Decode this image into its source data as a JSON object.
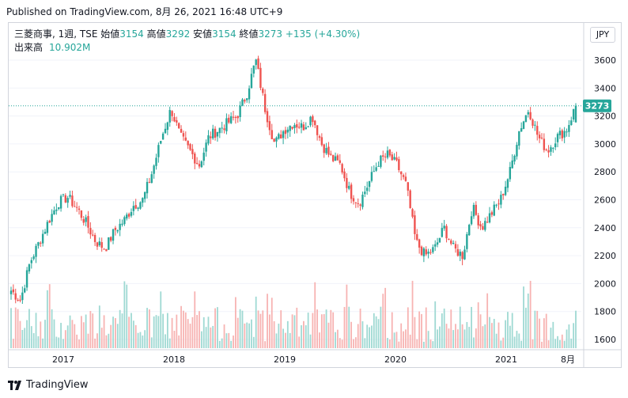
{
  "publish_line": "Published on TradingView.com, 8月 26, 2021 16:48 UTC+9",
  "legend": {
    "symbol": "三菱商事, 1週, TSE",
    "open_label": "始値",
    "open": "3154",
    "high_label": "高値",
    "high": "3292",
    "low_label": "安値",
    "low": "3154",
    "close_label": "終値",
    "close": "3273",
    "change": "+135 (+4.30%)",
    "volume_label": "出来高",
    "volume": "10.902M"
  },
  "currency": "JPY",
  "brand": "TradingView",
  "colors": {
    "up": "#26a69a",
    "down": "#ef5350",
    "up_vol": "#9fd9d3",
    "down_vol": "#f7b3b2",
    "last_price": "#26a69a",
    "grid": "#f0f3fa"
  },
  "chart_data": {
    "type": "candlestick",
    "price_axis_ticks": [
      1600,
      1800,
      2000,
      2200,
      2400,
      2600,
      2800,
      3000,
      3200,
      3400,
      3600
    ],
    "time_axis_labels": [
      "2017",
      "2018",
      "2019",
      "2020",
      "2021",
      "8月"
    ],
    "ylim": [
      1500,
      3720
    ],
    "last_price": 3273,
    "last_bar": {
      "open": 3154,
      "high": 3292,
      "low": 3154,
      "close": 3273,
      "volume": "10.902M"
    },
    "weekly_close_path": [
      {
        "x": "2016-07",
        "v": 1950
      },
      {
        "x": "2016-09",
        "v": 1880
      },
      {
        "x": "2016-10",
        "v": 2150
      },
      {
        "x": "2016-11",
        "v": 2300
      },
      {
        "x": "2016-12",
        "v": 2450
      },
      {
        "x": "2017-01",
        "v": 2580
      },
      {
        "x": "2017-02",
        "v": 2620
      },
      {
        "x": "2017-03",
        "v": 2540
      },
      {
        "x": "2017-04",
        "v": 2430
      },
      {
        "x": "2017-05",
        "v": 2300
      },
      {
        "x": "2017-06",
        "v": 2250
      },
      {
        "x": "2017-07",
        "v": 2380
      },
      {
        "x": "2017-08",
        "v": 2450
      },
      {
        "x": "2017-09",
        "v": 2560
      },
      {
        "x": "2017-10",
        "v": 2600
      },
      {
        "x": "2017-11",
        "v": 2800
      },
      {
        "x": "2017-12",
        "v": 3050
      },
      {
        "x": "2018-01",
        "v": 3250
      },
      {
        "x": "2018-02",
        "v": 3050
      },
      {
        "x": "2018-03",
        "v": 2950
      },
      {
        "x": "2018-04",
        "v": 2850
      },
      {
        "x": "2018-05",
        "v": 3050
      },
      {
        "x": "2018-06",
        "v": 3100
      },
      {
        "x": "2018-07",
        "v": 3150
      },
      {
        "x": "2018-08",
        "v": 3200
      },
      {
        "x": "2018-09",
        "v": 3350
      },
      {
        "x": "2018-10",
        "v": 3600
      },
      {
        "x": "2018-11",
        "v": 3250
      },
      {
        "x": "2018-12",
        "v": 3000
      },
      {
        "x": "2019-01",
        "v": 3100
      },
      {
        "x": "2019-02",
        "v": 3150
      },
      {
        "x": "2019-03",
        "v": 3120
      },
      {
        "x": "2019-04",
        "v": 3200
      },
      {
        "x": "2019-05",
        "v": 3000
      },
      {
        "x": "2019-06",
        "v": 2900
      },
      {
        "x": "2019-07",
        "v": 2850
      },
      {
        "x": "2019-08",
        "v": 2650
      },
      {
        "x": "2019-09",
        "v": 2580
      },
      {
        "x": "2019-10",
        "v": 2720
      },
      {
        "x": "2019-11",
        "v": 2870
      },
      {
        "x": "2019-12",
        "v": 2920
      },
      {
        "x": "2020-01",
        "v": 2850
      },
      {
        "x": "2020-02",
        "v": 2700
      },
      {
        "x": "2020-03",
        "v": 2300
      },
      {
        "x": "2020-04",
        "v": 2200
      },
      {
        "x": "2020-05",
        "v": 2250
      },
      {
        "x": "2020-06",
        "v": 2400
      },
      {
        "x": "2020-07",
        "v": 2250
      },
      {
        "x": "2020-08",
        "v": 2200
      },
      {
        "x": "2020-09",
        "v": 2550
      },
      {
        "x": "2020-10",
        "v": 2400
      },
      {
        "x": "2020-11",
        "v": 2500
      },
      {
        "x": "2020-12",
        "v": 2600
      },
      {
        "x": "2021-01",
        "v": 2800
      },
      {
        "x": "2021-02",
        "v": 3100
      },
      {
        "x": "2021-03",
        "v": 3250
      },
      {
        "x": "2021-04",
        "v": 3050
      },
      {
        "x": "2021-05",
        "v": 2950
      },
      {
        "x": "2021-06",
        "v": 3050
      },
      {
        "x": "2021-07",
        "v": 3100
      },
      {
        "x": "2021-08",
        "v": 3273
      }
    ]
  }
}
